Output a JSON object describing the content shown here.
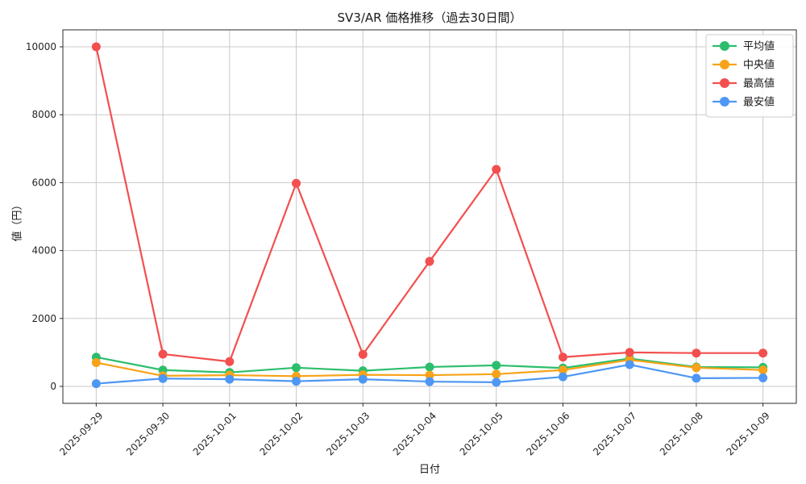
{
  "chart_data": {
    "type": "line",
    "title": "SV3/AR 価格推移（過去30日間）",
    "xlabel": "日付",
    "ylabel": "値（円）",
    "x": [
      "2025-09-29",
      "2025-09-30",
      "2025-10-01",
      "2025-10-02",
      "2025-10-03",
      "2025-10-04",
      "2025-10-05",
      "2025-10-06",
      "2025-10-07",
      "2025-10-08",
      "2025-10-09"
    ],
    "series": [
      {
        "name": "平均値",
        "key": "average",
        "color": "#2dbe6d",
        "values": [
          860,
          480,
          410,
          550,
          460,
          570,
          620,
          540,
          820,
          570,
          560
        ]
      },
      {
        "name": "中央値",
        "key": "median",
        "color": "#f7a319",
        "values": [
          700,
          310,
          330,
          300,
          340,
          330,
          360,
          480,
          780,
          550,
          480
        ]
      },
      {
        "name": "最高値",
        "key": "max",
        "color": "#f34f4f",
        "values": [
          10000,
          950,
          730,
          5980,
          940,
          3680,
          6390,
          860,
          1000,
          980,
          980
        ]
      },
      {
        "name": "最安値",
        "key": "min",
        "color": "#4e97f3",
        "values": [
          80,
          230,
          210,
          150,
          210,
          140,
          120,
          280,
          640,
          240,
          250
        ]
      }
    ],
    "ylim": [
      -500,
      10500
    ],
    "yticks": [
      0,
      2000,
      4000,
      6000,
      8000,
      10000
    ],
    "grid": true,
    "legend_position": "upper right"
  },
  "colors": {
    "background": "#ffffff",
    "grid": "#c9c9c9",
    "spine": "#2b2b2b",
    "tick_text": "#262626",
    "legend_border": "#cccccc",
    "legend_bg": "#ffffff"
  }
}
